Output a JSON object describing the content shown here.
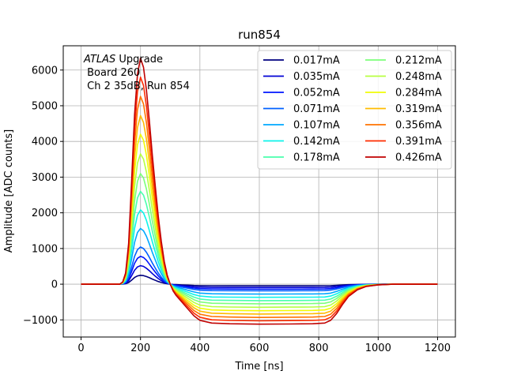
{
  "chart_data": {
    "type": "line",
    "title": "run854",
    "xlabel": "Time [ns]",
    "ylabel": "Amplitude [ADC counts]",
    "xlim": [
      -60,
      1260
    ],
    "ylim": [
      -1480,
      6680
    ],
    "xticks": [
      0,
      200,
      400,
      600,
      800,
      1000,
      1200
    ],
    "yticks": [
      -1000,
      0,
      1000,
      2000,
      3000,
      4000,
      5000,
      6000
    ],
    "xtick_labels": [
      "0",
      "200",
      "400",
      "600",
      "800",
      "1000",
      "1200"
    ],
    "ytick_labels": [
      "−1000",
      "0",
      "1000",
      "2000",
      "3000",
      "4000",
      "5000",
      "6000"
    ],
    "grid": true,
    "legend_position": "upper-right",
    "legend_columns": 2,
    "annotation": {
      "italic_prefix": "ATLAS",
      "line1_rest": " Upgrade",
      "line2": " Board 260",
      "line3": " Ch 2 35dB, Run 854"
    },
    "pulse_shape": {
      "time_ns": [
        0,
        130,
        140,
        150,
        160,
        170,
        180,
        190,
        200,
        210,
        220,
        230,
        240,
        250,
        260,
        270,
        280,
        290,
        300,
        310,
        320,
        340,
        360,
        380,
        400,
        440,
        500,
        600,
        700,
        780,
        820,
        840,
        860,
        880,
        900,
        930,
        960,
        1000,
        1050,
        1100,
        1200
      ],
      "normalized_amplitude": [
        0,
        0,
        0.01,
        0.05,
        0.18,
        0.45,
        0.75,
        0.93,
        1.0,
        0.96,
        0.86,
        0.72,
        0.57,
        0.43,
        0.3,
        0.19,
        0.1,
        0.04,
        0.0,
        -0.03,
        -0.05,
        -0.08,
        -0.11,
        -0.14,
        -0.16,
        -0.172,
        -0.175,
        -0.177,
        -0.176,
        -0.175,
        -0.172,
        -0.16,
        -0.13,
        -0.09,
        -0.055,
        -0.025,
        -0.01,
        -0.003,
        0,
        0,
        0
      ]
    },
    "series": [
      {
        "name": "0.017mA",
        "color": "#00007f",
        "peak": 250
      },
      {
        "name": "0.035mA",
        "color": "#0000d4",
        "peak": 520
      },
      {
        "name": "0.052mA",
        "color": "#0014ff",
        "peak": 780
      },
      {
        "name": "0.071mA",
        "color": "#0060ff",
        "peak": 1040
      },
      {
        "name": "0.107mA",
        "color": "#00a8ff",
        "peak": 1560
      },
      {
        "name": "0.142mA",
        "color": "#0cf4eb",
        "peak": 2080
      },
      {
        "name": "0.178mA",
        "color": "#4affad",
        "peak": 2600
      },
      {
        "name": "0.212mA",
        "color": "#7dff7a",
        "peak": 3100
      },
      {
        "name": "0.248mA",
        "color": "#b7ff40",
        "peak": 3650
      },
      {
        "name": "0.284mA",
        "color": "#f1fc06",
        "peak": 4200
      },
      {
        "name": "0.319mA",
        "color": "#ffbb00",
        "peak": 4720
      },
      {
        "name": "0.356mA",
        "color": "#ff7300",
        "peak": 5260
      },
      {
        "name": "0.391mA",
        "color": "#ff2c00",
        "peak": 5800
      },
      {
        "name": "0.426mA",
        "color": "#c00000",
        "peak": 6330
      }
    ]
  }
}
